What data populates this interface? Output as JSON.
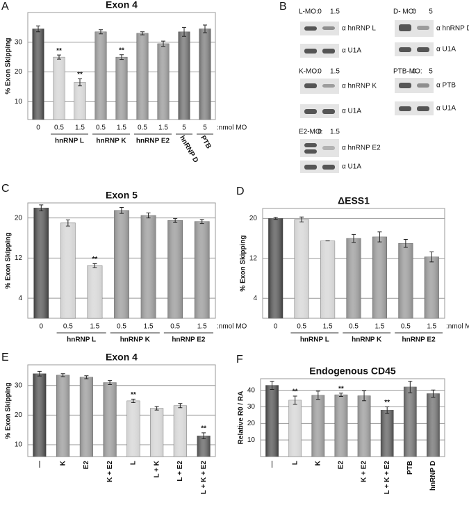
{
  "chart_data": [
    {
      "type": "bar",
      "panel": "A",
      "title": "Exon 4",
      "y_label": "% Exon Skipping",
      "categories": [
        "0",
        "0.5",
        "1.5",
        "0.5",
        "1.5",
        "0.5",
        "1.5",
        "5",
        "5"
      ],
      "group_labels": [
        null,
        "hnRNP L",
        null,
        "hnRNP K",
        null,
        "hnRNP E2",
        null,
        "hnRNP D",
        "PTB"
      ],
      "x_unit_label": ":nmol MO",
      "values": [
        34.5,
        25,
        16.5,
        33.5,
        25,
        33,
        29.5,
        33.5,
        34.5
      ],
      "errors": [
        1,
        0.7,
        1.2,
        0.7,
        0.8,
        0.5,
        0.9,
        1.5,
        1.3
      ],
      "significance": [
        null,
        "**",
        "**",
        null,
        "**",
        null,
        null,
        null,
        null
      ],
      "colors": [
        "#3c3c3c",
        "#cfcfcf",
        "#cfcfcf",
        "#8c8c8c",
        "#8c8c8c",
        "#8a8a8a",
        "#8a8a8a",
        "#5c5c5c",
        "#6a6a6a"
      ],
      "ylim": [
        4,
        40
      ],
      "yticks": [
        10,
        20,
        30
      ],
      "grid": true,
      "rotate_categories": false
    },
    {
      "type": "bar",
      "panel": "C",
      "title": "Exon 5",
      "y_label": "% Exon Skipping",
      "categories": [
        "0",
        "0.5",
        "1.5",
        "0.5",
        "1.5",
        "0.5",
        "1.5"
      ],
      "group_labels": [
        null,
        "hnRNP L",
        null,
        "hnRNP K",
        null,
        "hnRNP E2",
        null
      ],
      "x_unit_label": ":nmol MO",
      "values": [
        22,
        19,
        10.5,
        21.5,
        20.5,
        19.5,
        19.3
      ],
      "errors": [
        0.6,
        0.6,
        0.4,
        0.6,
        0.5,
        0.4,
        0.4
      ],
      "significance": [
        null,
        null,
        "**",
        null,
        null,
        null,
        null
      ],
      "colors": [
        "#3c3c3c",
        "#cfcfcf",
        "#cfcfcf",
        "#8c8c8c",
        "#8c8c8c",
        "#8a8a8a",
        "#8a8a8a"
      ],
      "ylim": [
        0,
        23
      ],
      "yticks": [
        4,
        12,
        20
      ],
      "grid": true,
      "rotate_categories": false
    },
    {
      "type": "bar",
      "panel": "D",
      "title": "ΔESS1",
      "y_label": "% Exon Skipping",
      "categories": [
        "0",
        "0.5",
        "1.5",
        "0.5",
        "1.5",
        "0.5",
        "1.5"
      ],
      "group_labels": [
        null,
        "hnRNP L",
        null,
        "hnRNP K",
        null,
        "hnRNP E2",
        null
      ],
      "x_unit_label": ":nmol MO",
      "values": [
        20,
        19.8,
        15.5,
        16,
        16.3,
        15,
        12.3
      ],
      "errors": [
        0.2,
        0.5,
        0,
        0.8,
        1,
        0.8,
        1
      ],
      "significance": [
        null,
        null,
        null,
        null,
        null,
        null,
        null
      ],
      "colors": [
        "#3c3c3c",
        "#cfcfcf",
        "#cfcfcf",
        "#8c8c8c",
        "#8c8c8c",
        "#8a8a8a",
        "#8a8a8a"
      ],
      "ylim": [
        0,
        22
      ],
      "yticks": [
        4,
        12,
        20
      ],
      "grid": true,
      "rotate_categories": false
    },
    {
      "type": "bar",
      "panel": "E",
      "title": "Exon 4",
      "y_label": "% Exon Skipping",
      "categories": [
        "—",
        "K",
        "E2",
        "K + E2",
        "L",
        "L + K",
        "L + E2",
        "L + K + E2"
      ],
      "values": [
        34,
        33.5,
        32.8,
        31,
        24.8,
        22.3,
        23.2,
        13
      ],
      "errors": [
        0.8,
        0.5,
        0.5,
        0.7,
        0.6,
        0.6,
        0.7,
        1
      ],
      "significance": [
        null,
        null,
        null,
        null,
        "**",
        null,
        null,
        "**"
      ],
      "colors": [
        "#3c3c3c",
        "#8c8c8c",
        "#8c8c8c",
        "#8c8c8c",
        "#cfcfcf",
        "#cfcfcf",
        "#cfcfcf",
        "#4a4a4a"
      ],
      "ylim": [
        6,
        37
      ],
      "yticks": [
        10,
        20,
        30
      ],
      "grid": true,
      "rotate_categories": true
    },
    {
      "type": "bar",
      "panel": "F",
      "title": "Endogenous CD45",
      "y_label": "Relative R0 / RA",
      "categories": [
        "—",
        "L",
        "K",
        "E2",
        "K + E2",
        "L + K + E2",
        "PTB",
        "hnRNP D"
      ],
      "values": [
        43,
        34,
        37,
        37.3,
        36.7,
        28,
        42,
        38
      ],
      "errors": [
        2.5,
        2.5,
        2.5,
        1,
        3,
        2,
        3.5,
        2.2
      ],
      "significance": [
        null,
        "**",
        null,
        "**",
        null,
        "**",
        null,
        null
      ],
      "colors": [
        "#3c3c3c",
        "#cfcfcf",
        "#8c8c8c",
        "#8c8c8c",
        "#8c8c8c",
        "#4a4a4a",
        "#5c5c5c",
        "#5c5c5c"
      ],
      "ylim": [
        0,
        47
      ],
      "yticks": [
        10,
        20,
        30,
        40
      ],
      "grid": true,
      "rotate_categories": true
    }
  ],
  "blots": {
    "panel": "B",
    "blocks": [
      {
        "label": "L-MO:",
        "lanes": [
          "0",
          "1.5"
        ],
        "targets": [
          "α hnRNP L",
          "α U1A"
        ]
      },
      {
        "label": "D- MO:",
        "lanes": [
          "0",
          "5"
        ],
        "targets": [
          "α hnRNP D",
          "α U1A"
        ]
      },
      {
        "label": "K-MO:",
        "lanes": [
          "0",
          "1.5"
        ],
        "targets": [
          "α hnRNP K",
          "α U1A"
        ]
      },
      {
        "label": "PTB-MO:",
        "lanes": [
          "0",
          "5"
        ],
        "targets": [
          "α PTB",
          "α U1A"
        ]
      },
      {
        "label": "E2-MO:",
        "lanes": [
          "0",
          "1.5"
        ],
        "targets": [
          "α hnRNP E2",
          "α U1A"
        ]
      }
    ]
  }
}
